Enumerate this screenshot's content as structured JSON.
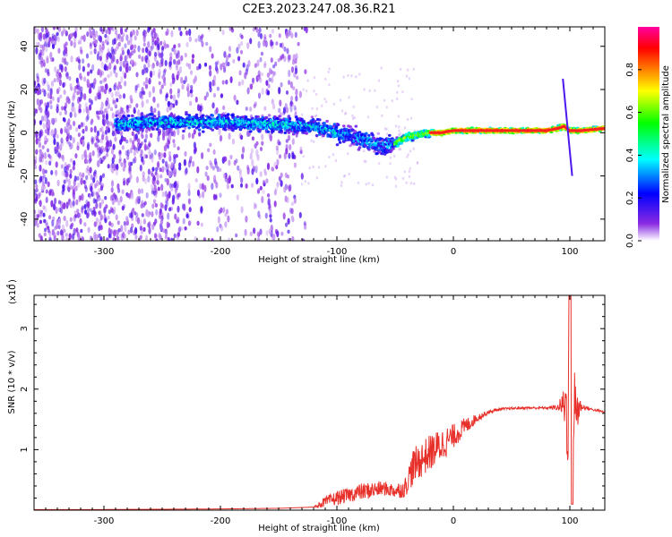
{
  "chart_data": [
    {
      "type": "heatmap",
      "title": "C2E3.2023.247.08.36.R21",
      "xlabel": "Height of straight line (km)",
      "ylabel": "Frequency (Hz)",
      "xlim": [
        -360,
        130
      ],
      "ylim": [
        -50,
        49
      ],
      "x_ticks": [
        -300,
        -200,
        -100,
        0,
        100
      ],
      "x_tick_labels": [
        "-300",
        "-200",
        "-100",
        "0",
        "100"
      ],
      "y_ticks": [
        -40,
        -20,
        0,
        20,
        40
      ],
      "y_tick_labels": [
        "-40",
        "-20",
        "0",
        "20",
        "40"
      ],
      "colorbar": {
        "label": "Normalized spectral amplitude",
        "range": [
          0,
          1
        ],
        "ticks": [
          0.0,
          0.2,
          0.4,
          0.6,
          0.8
        ],
        "tick_labels": [
          "0.0",
          "0.2",
          "0.4",
          "0.6",
          "0.8"
        ],
        "colormap": [
          "#ffffff",
          "#8a2be2",
          "#0000ff",
          "#00ffff",
          "#00ff00",
          "#ffff00",
          "#ff8000",
          "#ff0000",
          "#ff00a0"
        ]
      },
      "ridge": {
        "x": [
          -290,
          -250,
          -200,
          -150,
          -120,
          -100,
          -80,
          -60,
          -50,
          -40,
          -30,
          -20,
          -10,
          0,
          20,
          50,
          80,
          90,
          95,
          100,
          110,
          130
        ],
        "y": [
          4,
          5,
          5,
          4,
          3,
          0,
          -3,
          -6,
          -5,
          -2,
          -1,
          0,
          0,
          1,
          1,
          1,
          1,
          2,
          3,
          1,
          1,
          2
        ]
      },
      "grid": false
    },
    {
      "type": "line",
      "title": "",
      "xlabel": "Height of straight line (km)",
      "ylabel": "SNR (10 * v/v)",
      "y_multiplier_label": "(x10",
      "y_multiplier_exp": "4",
      "xlim": [
        -360,
        130
      ],
      "ylim": [
        0,
        3.55
      ],
      "x_ticks": [
        -300,
        -200,
        -100,
        0,
        100
      ],
      "x_tick_labels": [
        "-300",
        "-200",
        "-100",
        "0",
        "100"
      ],
      "y_ticks": [
        1,
        2,
        3
      ],
      "y_tick_labels": [
        "1",
        "2",
        "3"
      ],
      "line_color": "#e8302a",
      "series": [
        {
          "x": [
            -360,
            -300,
            -200,
            -150,
            -120,
            -112,
            -100,
            -90,
            -80,
            -70,
            -60,
            -50,
            -42,
            -35,
            -30,
            -20,
            -10,
            0,
            10,
            20,
            30,
            40,
            60,
            80,
            90,
            95,
            100,
            105,
            110,
            120,
            130
          ],
          "y": [
            0.01,
            0.01,
            0.02,
            0.03,
            0.05,
            0.12,
            0.2,
            0.25,
            0.3,
            0.33,
            0.36,
            0.32,
            0.35,
            0.7,
            0.8,
            0.95,
            1.08,
            1.22,
            1.38,
            1.52,
            1.62,
            1.67,
            1.69,
            1.69,
            1.7,
            1.75,
            1.6,
            1.68,
            1.71,
            1.66,
            1.62
          ],
          "noise": [
            0.0,
            0.0,
            0.0,
            0.0,
            0.0,
            0.08,
            0.12,
            0.12,
            0.14,
            0.14,
            0.12,
            0.12,
            0.15,
            0.3,
            0.3,
            0.3,
            0.28,
            0.2,
            0.15,
            0.07,
            0.03,
            0.02,
            0.02,
            0.02,
            0.05,
            0.3,
            1.4,
            0.6,
            0.05,
            0.02,
            0.02
          ]
        }
      ],
      "grid": false
    }
  ]
}
